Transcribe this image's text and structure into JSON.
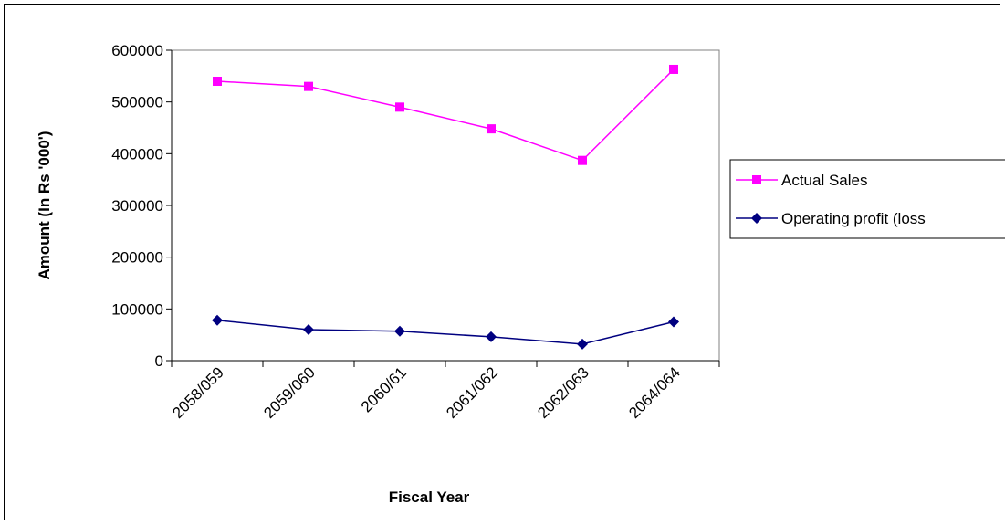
{
  "chart_data": {
    "type": "line",
    "categories": [
      "2058/059",
      "2059/060",
      "2060/61",
      "2061/062",
      "2062/063",
      "2064/064"
    ],
    "series": [
      {
        "name": "Actual Sales",
        "values": [
          540000,
          530000,
          490000,
          448000,
          387000,
          563000
        ],
        "color": "#FF00FF",
        "marker": "square"
      },
      {
        "name": "Operating profit (loss",
        "values": [
          78000,
          60000,
          57000,
          46000,
          32000,
          75000
        ],
        "color": "#000080",
        "marker": "diamond"
      }
    ],
    "xlabel": "Fiscal Year",
    "ylabel": "Amount (In Rs '000')",
    "ylim": [
      0,
      600000
    ],
    "yticks": [
      "0",
      "100000",
      "200000",
      "300000",
      "400000",
      "500000",
      "600000"
    ],
    "grid": false,
    "legend": "right"
  }
}
